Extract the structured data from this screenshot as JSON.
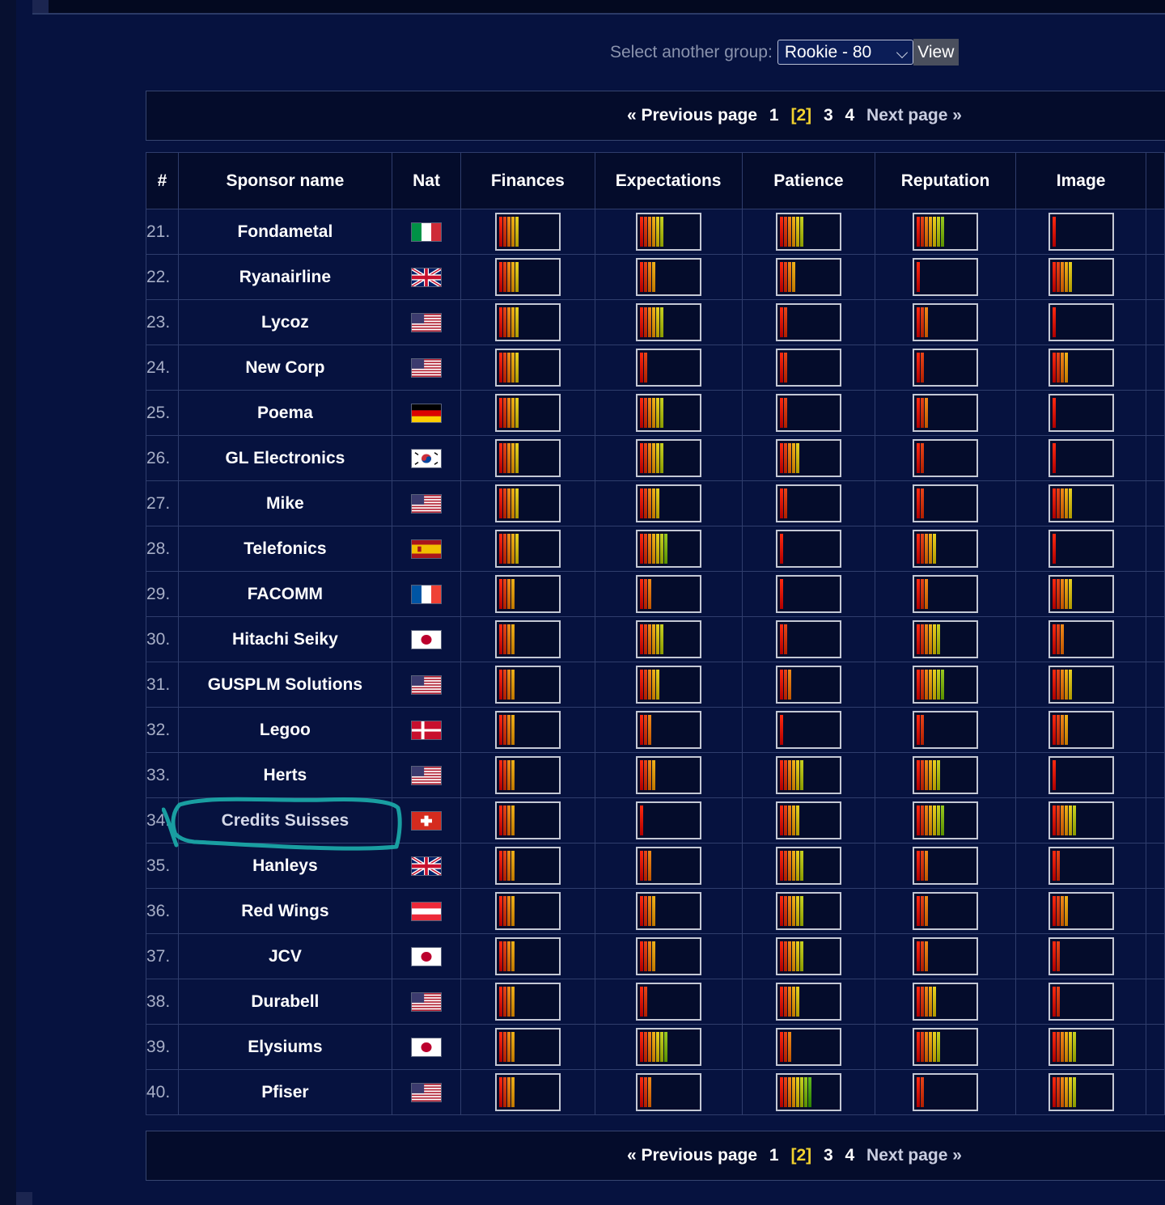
{
  "group_selector": {
    "label": "Select another group:",
    "selected": "Rookie - 80",
    "view_button": "View"
  },
  "pagination": {
    "previous": "« Previous page",
    "pages": [
      "1",
      "2",
      "3",
      "4"
    ],
    "current_page": "2",
    "next": "Next page »"
  },
  "table": {
    "headers": [
      "#",
      "Sponsor name",
      "Nat",
      "Finances",
      "Expectations",
      "Patience",
      "Reputation",
      "Image"
    ],
    "rows": [
      {
        "rank": "21.",
        "name": "Fondametal",
        "nat": "it",
        "finances": 5,
        "expectations": 6,
        "patience": 6,
        "reputation": 7,
        "image": 1
      },
      {
        "rank": "22.",
        "name": "Ryanairline",
        "nat": "gb",
        "finances": 5,
        "expectations": 4,
        "patience": 4,
        "reputation": 1,
        "image": 5
      },
      {
        "rank": "23.",
        "name": "Lycoz",
        "nat": "us",
        "finances": 5,
        "expectations": 6,
        "patience": 2,
        "reputation": 3,
        "image": 1
      },
      {
        "rank": "24.",
        "name": "New Corp",
        "nat": "us",
        "finances": 5,
        "expectations": 2,
        "patience": 2,
        "reputation": 2,
        "image": 4
      },
      {
        "rank": "25.",
        "name": "Poema",
        "nat": "de",
        "finances": 5,
        "expectations": 6,
        "patience": 2,
        "reputation": 3,
        "image": 1
      },
      {
        "rank": "26.",
        "name": "GL Electronics",
        "nat": "kr",
        "finances": 5,
        "expectations": 6,
        "patience": 5,
        "reputation": 2,
        "image": 1
      },
      {
        "rank": "27.",
        "name": "Mike",
        "nat": "us",
        "finances": 5,
        "expectations": 5,
        "patience": 2,
        "reputation": 2,
        "image": 5
      },
      {
        "rank": "28.",
        "name": "Telefonics",
        "nat": "es",
        "finances": 5,
        "expectations": 7,
        "patience": 1,
        "reputation": 5,
        "image": 1
      },
      {
        "rank": "29.",
        "name": "FACOMM",
        "nat": "fr",
        "finances": 4,
        "expectations": 3,
        "patience": 1,
        "reputation": 3,
        "image": 5
      },
      {
        "rank": "30.",
        "name": "Hitachi Seiky",
        "nat": "jp",
        "finances": 4,
        "expectations": 6,
        "patience": 2,
        "reputation": 6,
        "image": 3
      },
      {
        "rank": "31.",
        "name": "GUSPLM Solutions",
        "nat": "us",
        "finances": 4,
        "expectations": 5,
        "patience": 3,
        "reputation": 7,
        "image": 5
      },
      {
        "rank": "32.",
        "name": "Legoo",
        "nat": "dk",
        "finances": 4,
        "expectations": 3,
        "patience": 1,
        "reputation": 2,
        "image": 4
      },
      {
        "rank": "33.",
        "name": "Herts",
        "nat": "us",
        "finances": 4,
        "expectations": 4,
        "patience": 6,
        "reputation": 6,
        "image": 1
      },
      {
        "rank": "34.",
        "name": "Credits Suisses",
        "nat": "ch",
        "finances": 4,
        "expectations": 1,
        "patience": 5,
        "reputation": 7,
        "image": 6
      },
      {
        "rank": "35.",
        "name": "Hanleys",
        "nat": "gb",
        "finances": 4,
        "expectations": 3,
        "patience": 6,
        "reputation": 3,
        "image": 2
      },
      {
        "rank": "36.",
        "name": "Red Wings",
        "nat": "at",
        "finances": 4,
        "expectations": 4,
        "patience": 6,
        "reputation": 3,
        "image": 4
      },
      {
        "rank": "37.",
        "name": "JCV",
        "nat": "jp",
        "finances": 4,
        "expectations": 4,
        "patience": 6,
        "reputation": 3,
        "image": 2
      },
      {
        "rank": "38.",
        "name": "Durabell",
        "nat": "us",
        "finances": 4,
        "expectations": 2,
        "patience": 5,
        "reputation": 5,
        "image": 2
      },
      {
        "rank": "39.",
        "name": "Elysiums",
        "nat": "jp",
        "finances": 4,
        "expectations": 7,
        "patience": 3,
        "reputation": 6,
        "image": 6
      },
      {
        "rank": "40.",
        "name": "Pfiser",
        "nat": "us",
        "finances": 4,
        "expectations": 3,
        "patience": 8,
        "reputation": 2,
        "image": 6
      }
    ]
  },
  "highlighted_sponsor": "Credits Suisses",
  "colors": {
    "page_background": "#06123f",
    "header_background": "#040c2b",
    "grid_line": "#2f3d6c",
    "current_page": "#f2d22e",
    "annotation": "#1aa7a6"
  }
}
